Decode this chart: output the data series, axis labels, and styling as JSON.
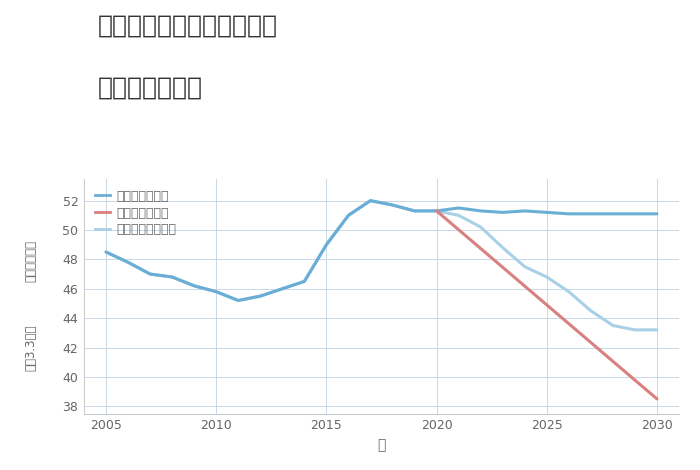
{
  "title_line1": "兵庫県西宮市名塩茶園町の",
  "title_line2": "土地の価格推移",
  "xlabel": "年",
  "ylabel_top": "単価（万円）",
  "ylabel_bottom": "坪（3.3㎡）",
  "background_color": "#ffffff",
  "plot_background": "#ffffff",
  "good_scenario": {
    "label": "グッドシナリオ",
    "color": "#6aaed6",
    "x": [
      2005,
      2006,
      2007,
      2008,
      2009,
      2010,
      2011,
      2012,
      2013,
      2014,
      2015,
      2016,
      2017,
      2018,
      2019,
      2020,
      2021,
      2022,
      2023,
      2024,
      2025,
      2026,
      2027,
      2028,
      2029,
      2030
    ],
    "y": [
      48.5,
      47.8,
      47.0,
      46.8,
      46.2,
      45.8,
      45.2,
      45.5,
      46.0,
      46.5,
      49.0,
      51.0,
      52.0,
      51.7,
      51.3,
      51.3,
      51.5,
      51.3,
      51.2,
      51.3,
      51.2,
      51.1,
      51.1,
      51.1,
      51.1,
      51.1
    ]
  },
  "bad_scenario": {
    "label": "バッドシナリオ",
    "color": "#d98080",
    "x": [
      2020,
      2030
    ],
    "y": [
      51.3,
      38.5
    ]
  },
  "normal_scenario": {
    "label": "ノーマルシナリオ",
    "color": "#a8d0e6",
    "x": [
      2005,
      2006,
      2007,
      2008,
      2009,
      2010,
      2011,
      2012,
      2013,
      2014,
      2015,
      2016,
      2017,
      2018,
      2019,
      2020,
      2021,
      2022,
      2023,
      2024,
      2025,
      2026,
      2027,
      2028,
      2029,
      2030
    ],
    "y": [
      48.5,
      47.8,
      47.0,
      46.8,
      46.2,
      45.8,
      45.2,
      45.5,
      46.0,
      46.5,
      49.0,
      51.0,
      52.0,
      51.7,
      51.3,
      51.3,
      51.0,
      50.2,
      48.8,
      47.5,
      46.8,
      45.8,
      44.5,
      43.5,
      43.2,
      43.2
    ]
  },
  "ylim": [
    37.5,
    53.5
  ],
  "xlim": [
    2004.0,
    2031.0
  ],
  "yticks": [
    38,
    40,
    42,
    44,
    46,
    48,
    50,
    52
  ],
  "xticks": [
    2005,
    2010,
    2015,
    2020,
    2025,
    2030
  ],
  "grid_color": "#c8d8e8",
  "title_color": "#333333",
  "tick_color": "#666666",
  "linewidth": 2.2,
  "title_fontsize": 18,
  "axis_fontsize": 10
}
